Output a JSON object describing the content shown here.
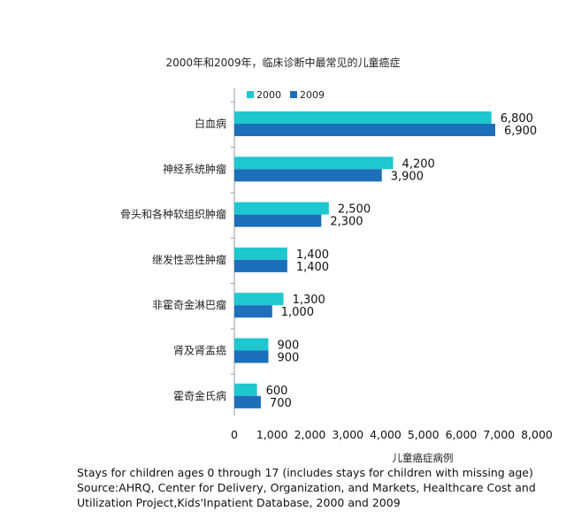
{
  "chart_data": {
    "type": "bar",
    "orientation": "horizontal",
    "title": "2000年和2009年，临床诊断中最常见的儿童癌症",
    "xlabel": "儿童癌症病例",
    "ylabel": "",
    "xlim": [
      0,
      8000
    ],
    "x_ticks": [
      "0",
      "1,000",
      "2,000",
      "3,000",
      "4,000",
      "5,000",
      "6,000",
      "7,000",
      "8,000"
    ],
    "categories": [
      "白血病",
      "神经系统肿瘤",
      "骨头和各种软组织肿瘤",
      "继发性恶性肿瘤",
      "非霍奇金淋巴瘤",
      "肾及肾盂癌",
      "霍奇金氏病"
    ],
    "series": [
      {
        "name": "2000",
        "color": "#1fc7cf",
        "values": [
          6800,
          4200,
          2500,
          1400,
          1300,
          900,
          600
        ],
        "labels": [
          "6,800",
          "4,200",
          "2,500",
          "1,400",
          "1,300",
          "900",
          "600"
        ]
      },
      {
        "name": "2009",
        "color": "#1c6fb8",
        "values": [
          6900,
          3900,
          2300,
          1400,
          1000,
          900,
          700
        ],
        "labels": [
          "6,900",
          "3,900",
          "2,300",
          "1,400",
          "1,000",
          "900",
          "700"
        ]
      }
    ],
    "legend_position": "top",
    "grid": false
  },
  "footnote": {
    "line1": "Stays for children ages 0 through 17 (includes stays for children with missing age)",
    "line2": "Source:AHRQ, Center for Delivery, Organization, and Markets, Healthcare Cost and",
    "line3": "Utilization Project,Kids'Inpatient Database, 2000 and 2009"
  }
}
